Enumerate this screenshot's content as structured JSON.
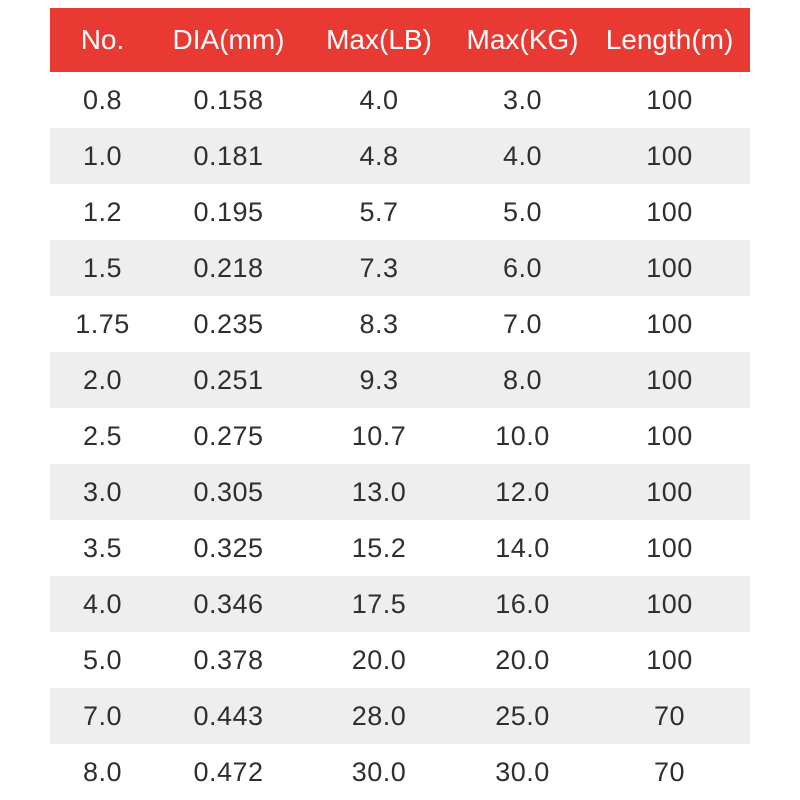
{
  "table": {
    "columns": [
      "No.",
      "DIA(mm)",
      "Max(LB)",
      "Max(KG)",
      "Length(m)"
    ],
    "rows": [
      [
        "0.8",
        "0.158",
        "4.0",
        "3.0",
        "100"
      ],
      [
        "1.0",
        "0.181",
        "4.8",
        "4.0",
        "100"
      ],
      [
        "1.2",
        "0.195",
        "5.7",
        "5.0",
        "100"
      ],
      [
        "1.5",
        "0.218",
        "7.3",
        "6.0",
        "100"
      ],
      [
        "1.75",
        "0.235",
        "8.3",
        "7.0",
        "100"
      ],
      [
        "2.0",
        "0.251",
        "9.3",
        "8.0",
        "100"
      ],
      [
        "2.5",
        "0.275",
        "10.7",
        "10.0",
        "100"
      ],
      [
        "3.0",
        "0.305",
        "13.0",
        "12.0",
        "100"
      ],
      [
        "3.5",
        "0.325",
        "15.2",
        "14.0",
        "100"
      ],
      [
        "4.0",
        "0.346",
        "17.5",
        "16.0",
        "100"
      ],
      [
        "5.0",
        "0.378",
        "20.0",
        "20.0",
        "100"
      ],
      [
        "7.0",
        "0.443",
        "28.0",
        "25.0",
        "70"
      ],
      [
        "8.0",
        "0.472",
        "30.0",
        "30.0",
        "70"
      ]
    ]
  },
  "colors": {
    "header_bg": "#e83a33",
    "header_text": "#ffffff",
    "row_bg": "#ffffff",
    "row_alt_bg": "#eeeeee",
    "body_text": "#2f2f2f"
  },
  "chart_data": {
    "type": "table",
    "title": "",
    "columns": [
      "No.",
      "DIA(mm)",
      "Max(LB)",
      "Max(KG)",
      "Length(m)"
    ],
    "rows": [
      [
        "0.8",
        "0.158",
        "4.0",
        "3.0",
        "100"
      ],
      [
        "1.0",
        "0.181",
        "4.8",
        "4.0",
        "100"
      ],
      [
        "1.2",
        "0.195",
        "5.7",
        "5.0",
        "100"
      ],
      [
        "1.5",
        "0.218",
        "7.3",
        "6.0",
        "100"
      ],
      [
        "1.75",
        "0.235",
        "8.3",
        "7.0",
        "100"
      ],
      [
        "2.0",
        "0.251",
        "9.3",
        "8.0",
        "100"
      ],
      [
        "2.5",
        "0.275",
        "10.7",
        "10.0",
        "100"
      ],
      [
        "3.0",
        "0.305",
        "13.0",
        "12.0",
        "100"
      ],
      [
        "3.5",
        "0.325",
        "15.2",
        "14.0",
        "100"
      ],
      [
        "4.0",
        "0.346",
        "17.5",
        "16.0",
        "100"
      ],
      [
        "5.0",
        "0.378",
        "20.0",
        "20.0",
        "100"
      ],
      [
        "7.0",
        "0.443",
        "28.0",
        "25.0",
        "70"
      ],
      [
        "8.0",
        "0.472",
        "30.0",
        "30.0",
        "70"
      ]
    ]
  }
}
